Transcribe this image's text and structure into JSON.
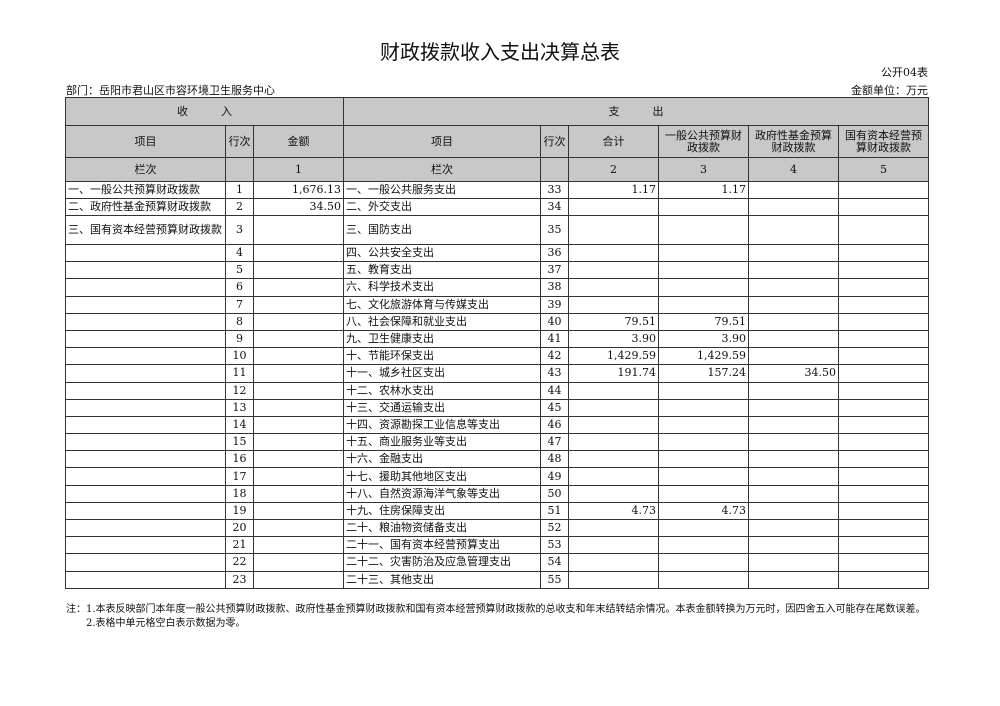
{
  "title": "财政拨款收入支出决算总表",
  "code": "公开04表",
  "department": "部门：岳阳市君山区市容环境卫生服务中心",
  "unit": "金额单位：万元",
  "header": {
    "income": "收　　　入",
    "expense": "支　　　出",
    "item": "项目",
    "row_no": "行次",
    "amount": "金额",
    "total": "合计",
    "general": "一般公共预算财政拨款",
    "fund": "政府性基金预算财政拨款",
    "state": "国有资本经营预算财政拨款",
    "col_label": "栏次",
    "c1": "1",
    "c2": "2",
    "c3": "3",
    "c4": "4",
    "c5": "5"
  },
  "rows": [
    [
      "一、一般公共预算财政拨款",
      "1",
      "1,676.13",
      "一、一般公共服务支出",
      "33",
      "1.17",
      "1.17",
      "",
      ""
    ],
    [
      "二、政府性基金预算财政拨款",
      "2",
      "34.50",
      "二、外交支出",
      "34",
      "",
      "",
      "",
      ""
    ],
    [
      "三、国有资本经营预算财政拨款",
      "3",
      "",
      "三、国防支出",
      "35",
      "",
      "",
      "",
      ""
    ],
    [
      "",
      "4",
      "",
      "四、公共安全支出",
      "36",
      "",
      "",
      "",
      ""
    ],
    [
      "",
      "5",
      "",
      "五、教育支出",
      "37",
      "",
      "",
      "",
      ""
    ],
    [
      "",
      "6",
      "",
      "六、科学技术支出",
      "38",
      "",
      "",
      "",
      ""
    ],
    [
      "",
      "7",
      "",
      "七、文化旅游体育与传媒支出",
      "39",
      "",
      "",
      "",
      ""
    ],
    [
      "",
      "8",
      "",
      "八、社会保障和就业支出",
      "40",
      "79.51",
      "79.51",
      "",
      ""
    ],
    [
      "",
      "9",
      "",
      "九、卫生健康支出",
      "41",
      "3.90",
      "3.90",
      "",
      ""
    ],
    [
      "",
      "10",
      "",
      "十、节能环保支出",
      "42",
      "1,429.59",
      "1,429.59",
      "",
      ""
    ],
    [
      "",
      "11",
      "",
      "十一、城乡社区支出",
      "43",
      "191.74",
      "157.24",
      "34.50",
      ""
    ],
    [
      "",
      "12",
      "",
      "十二、农林水支出",
      "44",
      "",
      "",
      "",
      ""
    ],
    [
      "",
      "13",
      "",
      "十三、交通运输支出",
      "45",
      "",
      "",
      "",
      ""
    ],
    [
      "",
      "14",
      "",
      "十四、资源勘探工业信息等支出",
      "46",
      "",
      "",
      "",
      ""
    ],
    [
      "",
      "15",
      "",
      "十五、商业服务业等支出",
      "47",
      "",
      "",
      "",
      ""
    ],
    [
      "",
      "16",
      "",
      "十六、金融支出",
      "48",
      "",
      "",
      "",
      ""
    ],
    [
      "",
      "17",
      "",
      "十七、援助其他地区支出",
      "49",
      "",
      "",
      "",
      ""
    ],
    [
      "",
      "18",
      "",
      "十八、自然资源海洋气象等支出",
      "50",
      "",
      "",
      "",
      ""
    ],
    [
      "",
      "19",
      "",
      "十九、住房保障支出",
      "51",
      "4.73",
      "4.73",
      "",
      ""
    ],
    [
      "",
      "20",
      "",
      "二十、粮油物资储备支出",
      "52",
      "",
      "",
      "",
      ""
    ],
    [
      "",
      "21",
      "",
      "二十一、国有资本经营预算支出",
      "53",
      "",
      "",
      "",
      ""
    ],
    [
      "",
      "22",
      "",
      "二十二、灾害防治及应急管理支出",
      "54",
      "",
      "",
      "",
      ""
    ],
    [
      "",
      "23",
      "",
      "二十三、其他支出",
      "55",
      "",
      "",
      "",
      ""
    ]
  ],
  "notes": [
    "注：1.本表反映部门本年度一般公共预算财政拨款、政府性基金预算财政拨款和国有资本经营预算财政拨款的总收支和年末结转结余情况。本表金额转换为万元时，因四舍五入可能存在尾数误差。",
    "　　2.表格中单元格空白表示数据为零。"
  ]
}
